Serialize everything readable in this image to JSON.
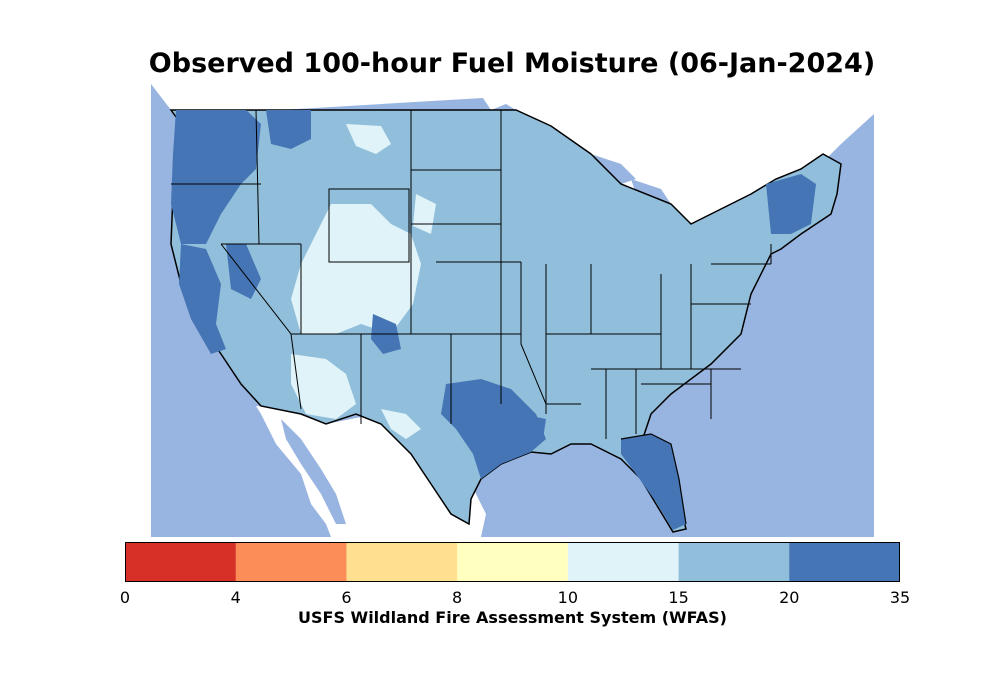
{
  "title": "Observed 100-hour Fuel Moisture (06-Jan-2024)",
  "colorbar": {
    "label": "USFS Wildland Fire Assessment System (WFAS)",
    "bins": [
      {
        "min": 0,
        "max": 4,
        "color": "#d73027"
      },
      {
        "min": 4,
        "max": 6,
        "color": "#fc8d59"
      },
      {
        "min": 6,
        "max": 8,
        "color": "#fee090"
      },
      {
        "min": 8,
        "max": 10,
        "color": "#ffffbf"
      },
      {
        "min": 10,
        "max": 15,
        "color": "#e0f3f8"
      },
      {
        "min": 15,
        "max": 20,
        "color": "#91bfdb"
      },
      {
        "min": 20,
        "max": 35,
        "color": "#4575b4"
      }
    ],
    "ticks": [
      "0",
      "4",
      "6",
      "8",
      "10",
      "15",
      "20",
      "35"
    ]
  },
  "colors": {
    "water": "#98b4e0",
    "no_data": "#ffffff",
    "border": "#000000"
  }
}
